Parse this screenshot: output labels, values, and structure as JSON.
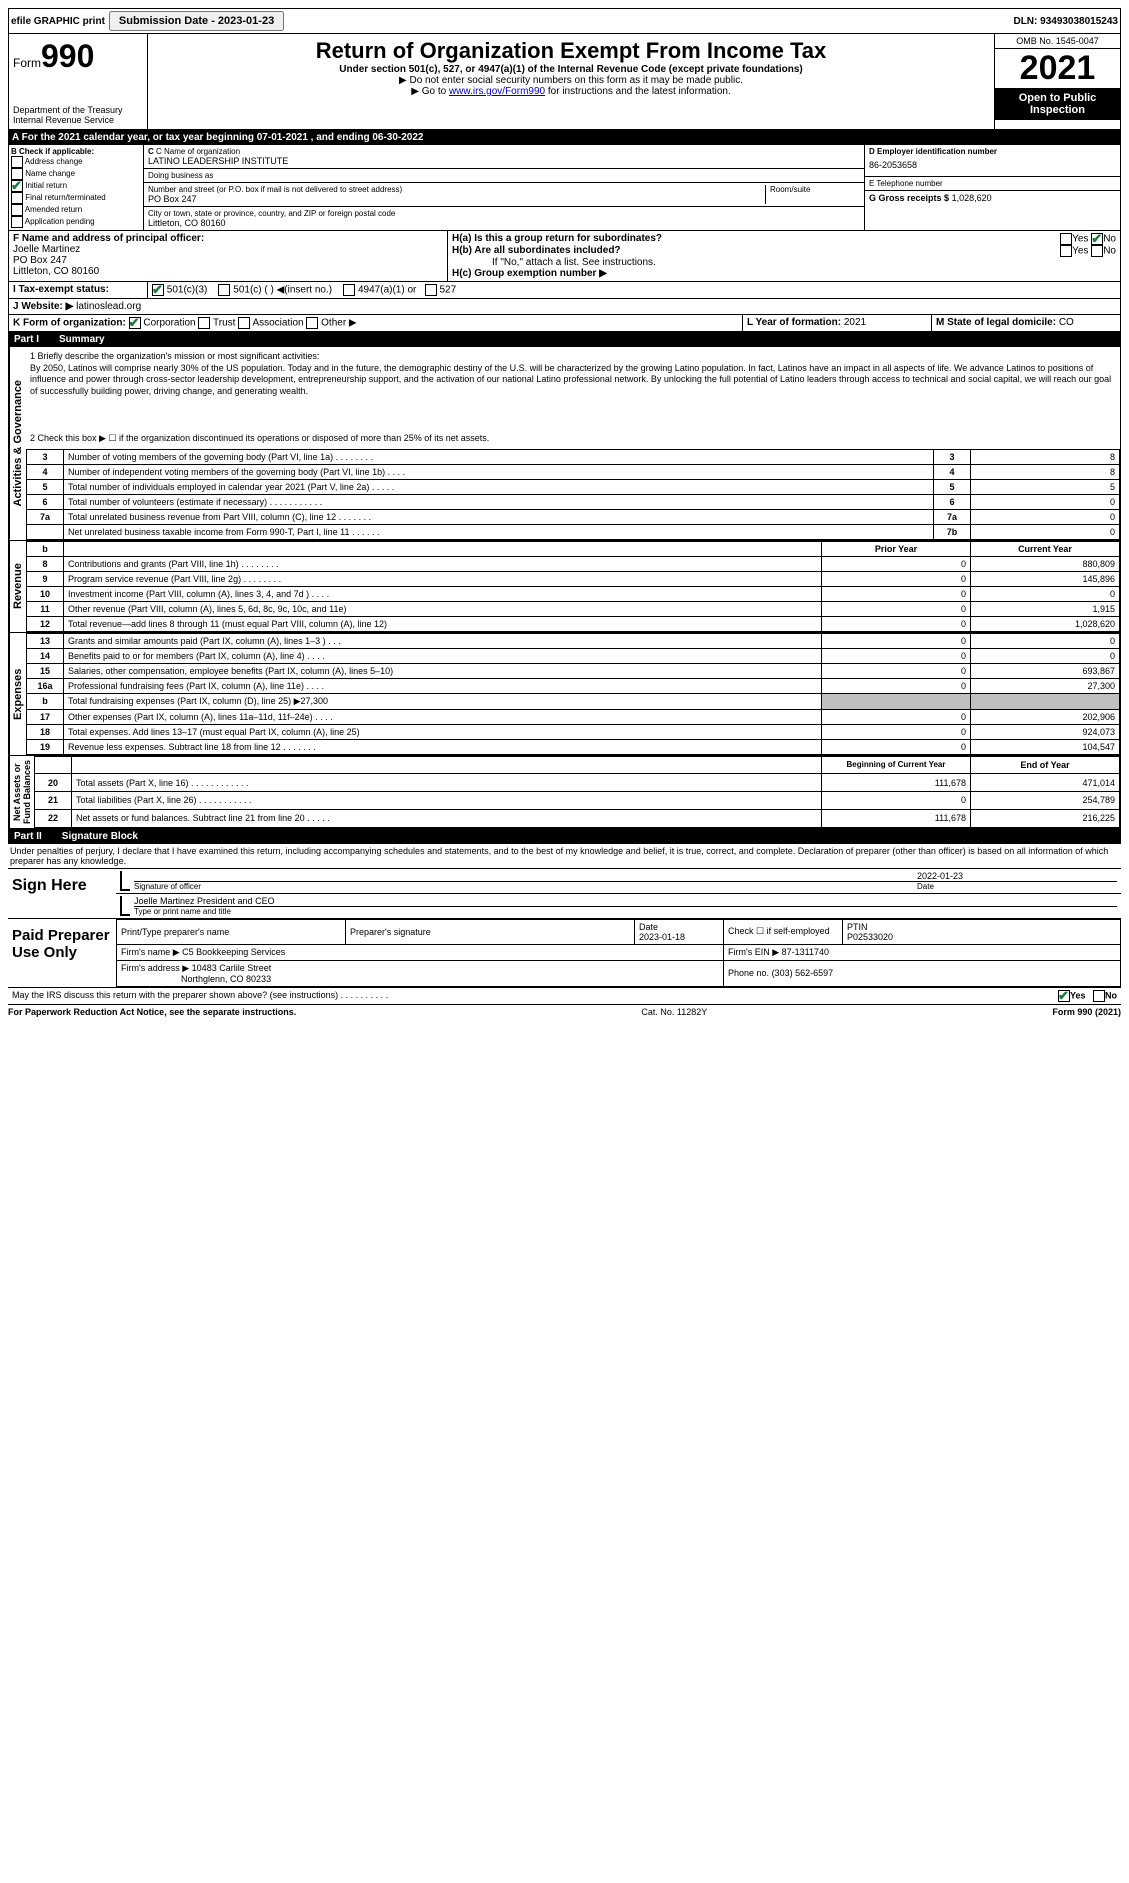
{
  "topbar": {
    "efile": "efile GRAPHIC print",
    "submission_label": "Submission Date - 2023-01-23",
    "dln": "DLN: 93493038015243"
  },
  "header": {
    "form_prefix": "Form",
    "form_number": "990",
    "dept": "Department of the Treasury",
    "irs": "Internal Revenue Service",
    "title": "Return of Organization Exempt From Income Tax",
    "sub1": "Under section 501(c), 527, or 4947(a)(1) of the Internal Revenue Code (except private foundations)",
    "sub2": "▶ Do not enter social security numbers on this form as it may be made public.",
    "sub3_pre": "▶ Go to ",
    "sub3_link": "www.irs.gov/Form990",
    "sub3_post": " for instructions and the latest information.",
    "omb": "OMB No. 1545-0047",
    "year": "2021",
    "inspect": "Open to Public Inspection"
  },
  "rowA": {
    "text_pre": "A  For the 2021 calendar year, or tax year beginning ",
    "begin": "07-01-2021",
    "mid": " , and ending ",
    "end": "06-30-2022"
  },
  "colB": {
    "heading": "B Check if applicable:",
    "items": [
      "Address change",
      "Name change",
      "Initial return",
      "Final return/terminated",
      "Amended return",
      "Application pending"
    ],
    "checked_index": 2
  },
  "colC": {
    "name_label": "C Name of organization",
    "name": "LATINO LEADERSHIP INSTITUTE",
    "dba_label": "Doing business as",
    "dba": "",
    "street_label": "Number and street (or P.O. box if mail is not delivered to street address)",
    "street": "PO Box 247",
    "room_label": "Room/suite",
    "city_label": "City or town, state or province, country, and ZIP or foreign postal code",
    "city": "Littleton, CO  80160"
  },
  "colD": {
    "d_label": "D Employer identification number",
    "d_value": "86-2053658",
    "e_label": "E Telephone number",
    "e_value": "",
    "g_label": "G Gross receipts $",
    "g_value": "1,028,620"
  },
  "rowF": {
    "label": "F  Name and address of principal officer:",
    "name": "Joelle Martinez",
    "addr1": "PO Box 247",
    "addr2": "Littleton, CO  80160"
  },
  "rowH": {
    "ha_label": "H(a)  Is this a group return for subordinates?",
    "ha_yes": "Yes",
    "ha_no": "No",
    "hb_label": "H(b)  Are all subordinates included?",
    "hb_yes": "Yes",
    "hb_no": "No",
    "hb_note": "If \"No,\" attach a list. See instructions.",
    "hc_label": "H(c)  Group exemption number ▶"
  },
  "rowI": {
    "label": "I   Tax-exempt status:",
    "opt1": "501(c)(3)",
    "opt2": "501(c) (   ) ◀(insert no.)",
    "opt3": "4947(a)(1) or",
    "opt4": "527"
  },
  "rowJ": {
    "label": "J  Website: ▶",
    "value": " latinoslead.org"
  },
  "rowK": {
    "label": "K Form of organization:",
    "opts": [
      "Corporation",
      "Trust",
      "Association",
      "Other ▶"
    ],
    "l_label": "L Year of formation:",
    "l_value": "2021",
    "m_label": "M State of legal domicile:",
    "m_value": "CO"
  },
  "part1": {
    "label": "Part I",
    "title": "Summary"
  },
  "mission": {
    "q1": "1   Briefly describe the organization's mission or most significant activities:",
    "text": "By 2050, Latinos will comprise nearly 30% of the US population. Today and in the future, the demographic destiny of the U.S. will be characterized by the growing Latino population. In fact, Latinos have an impact in all aspects of life. We advance Latinos to positions of influence and power through cross-sector leadership development, entrepreneurship support, and the activation of our national Latino professional network. By unlocking the full potential of Latino leaders through access to technical and social capital, we will reach our goal of successfully building power, driving change, and generating wealth.",
    "q2": "2   Check this box ▶ ☐ if the organization discontinued its operations or disposed of more than 25% of its net assets."
  },
  "governance": [
    {
      "n": "3",
      "t": "Number of voting members of the governing body (Part VI, line 1a)  .   .   .   .   .   .   .   .",
      "c": "3",
      "v": "8"
    },
    {
      "n": "4",
      "t": "Number of independent voting members of the governing body (Part VI, line 1b)   .   .   .   .",
      "c": "4",
      "v": "8"
    },
    {
      "n": "5",
      "t": "Total number of individuals employed in calendar year 2021 (Part V, line 2a)   .   .   .   .   .",
      "c": "5",
      "v": "5"
    },
    {
      "n": "6",
      "t": "Total number of volunteers (estimate if necessary)   .   .   .   .   .   .   .   .   .   .   .",
      "c": "6",
      "v": "0"
    },
    {
      "n": "7a",
      "t": "Total unrelated business revenue from Part VIII, column (C), line 12   .   .   .   .   .   .   .",
      "c": "7a",
      "v": "0"
    },
    {
      "n": "",
      "t": "Net unrelated business taxable income from Form 990-T, Part I, line 11   .   .   .   .   .   .",
      "c": "7b",
      "v": "0"
    }
  ],
  "revExpHead": {
    "b": "b",
    "prior": "Prior Year",
    "current": "Current Year"
  },
  "revenue": [
    {
      "n": "8",
      "t": "Contributions and grants (Part VIII, line 1h)   .   .   .   .   .   .   .   .",
      "p": "0",
      "c": "880,809"
    },
    {
      "n": "9",
      "t": "Program service revenue (Part VIII, line 2g)   .   .   .   .   .   .   .   .",
      "p": "0",
      "c": "145,896"
    },
    {
      "n": "10",
      "t": "Investment income (Part VIII, column (A), lines 3, 4, and 7d )   .   .   .   .",
      "p": "0",
      "c": "0"
    },
    {
      "n": "11",
      "t": "Other revenue (Part VIII, column (A), lines 5, 6d, 8c, 9c, 10c, and 11e)",
      "p": "0",
      "c": "1,915"
    },
    {
      "n": "12",
      "t": "Total revenue—add lines 8 through 11 (must equal Part VIII, column (A), line 12)",
      "p": "0",
      "c": "1,028,620"
    }
  ],
  "expenses": [
    {
      "n": "13",
      "t": "Grants and similar amounts paid (Part IX, column (A), lines 1–3 )   .   .   .",
      "p": "0",
      "c": "0"
    },
    {
      "n": "14",
      "t": "Benefits paid to or for members (Part IX, column (A), line 4)   .   .   .   .",
      "p": "0",
      "c": "0"
    },
    {
      "n": "15",
      "t": "Salaries, other compensation, employee benefits (Part IX, column (A), lines 5–10)",
      "p": "0",
      "c": "693,867"
    },
    {
      "n": "16a",
      "t": "Professional fundraising fees (Part IX, column (A), line 11e)   .   .   .   .",
      "p": "0",
      "c": "27,300"
    },
    {
      "n": "b",
      "t": "Total fundraising expenses (Part IX, column (D), line 25) ▶27,300",
      "p": "shade",
      "c": "shade"
    },
    {
      "n": "17",
      "t": "Other expenses (Part IX, column (A), lines 11a–11d, 11f–24e)   .   .   .   .",
      "p": "0",
      "c": "202,906"
    },
    {
      "n": "18",
      "t": "Total expenses. Add lines 13–17 (must equal Part IX, column (A), line 25)",
      "p": "0",
      "c": "924,073"
    },
    {
      "n": "19",
      "t": "Revenue less expenses. Subtract line 18 from line 12   .   .   .   .   .   .   .",
      "p": "0",
      "c": "104,547"
    }
  ],
  "netHead": {
    "begin": "Beginning of Current Year",
    "end": "End of Year"
  },
  "netassets": [
    {
      "n": "20",
      "t": "Total assets (Part X, line 16)   .   .   .   .   .   .   .   .   .   .   .   .",
      "p": "111,678",
      "c": "471,014"
    },
    {
      "n": "21",
      "t": "Total liabilities (Part X, line 26)   .   .   .   .   .   .   .   .   .   .   .",
      "p": "0",
      "c": "254,789"
    },
    {
      "n": "22",
      "t": "Net assets or fund balances. Subtract line 21 from line 20   .   .   .   .   .",
      "p": "111,678",
      "c": "216,225"
    }
  ],
  "part2": {
    "label": "Part II",
    "title": "Signature Block"
  },
  "sig": {
    "perjury": "Under penalties of perjury, I declare that I have examined this return, including accompanying schedules and statements, and to the best of my knowledge and belief, it is true, correct, and complete. Declaration of preparer (other than officer) is based on all information of which preparer has any knowledge.",
    "sign_here": "Sign Here",
    "sig_officer": "Signature of officer",
    "date_label": "Date",
    "date": "2022-01-23",
    "name_title": "Joelle Martinez President and CEO",
    "type_name": "Type or print name and title"
  },
  "preparer": {
    "heading": "Paid Preparer Use Only",
    "print_name_label": "Print/Type preparer's name",
    "print_name": "",
    "sig_label": "Preparer's signature",
    "date_label": "Date",
    "date": "2023-01-18",
    "check_label": "Check ☐ if self-employed",
    "ptin_label": "PTIN",
    "ptin": "P02533020",
    "firm_name_label": "Firm's name      ▶",
    "firm_name": "C5 Bookkeeping Services",
    "firm_ein_label": "Firm's EIN ▶",
    "firm_ein": "87-1311740",
    "firm_addr_label": "Firm's address ▶",
    "firm_addr1": "10483 Carlile Street",
    "firm_addr2": "Northglenn, CO  80233",
    "phone_label": "Phone no.",
    "phone": "(303) 562-6597"
  },
  "discuss": {
    "text": "May the IRS discuss this return with the preparer shown above? (see instructions)   .   .   .   .   .   .   .   .   .   .",
    "yes": "Yes",
    "no": "No"
  },
  "footer": {
    "left": "For Paperwork Reduction Act Notice, see the separate instructions.",
    "mid": "Cat. No. 11282Y",
    "right": "Form 990 (2021)"
  }
}
